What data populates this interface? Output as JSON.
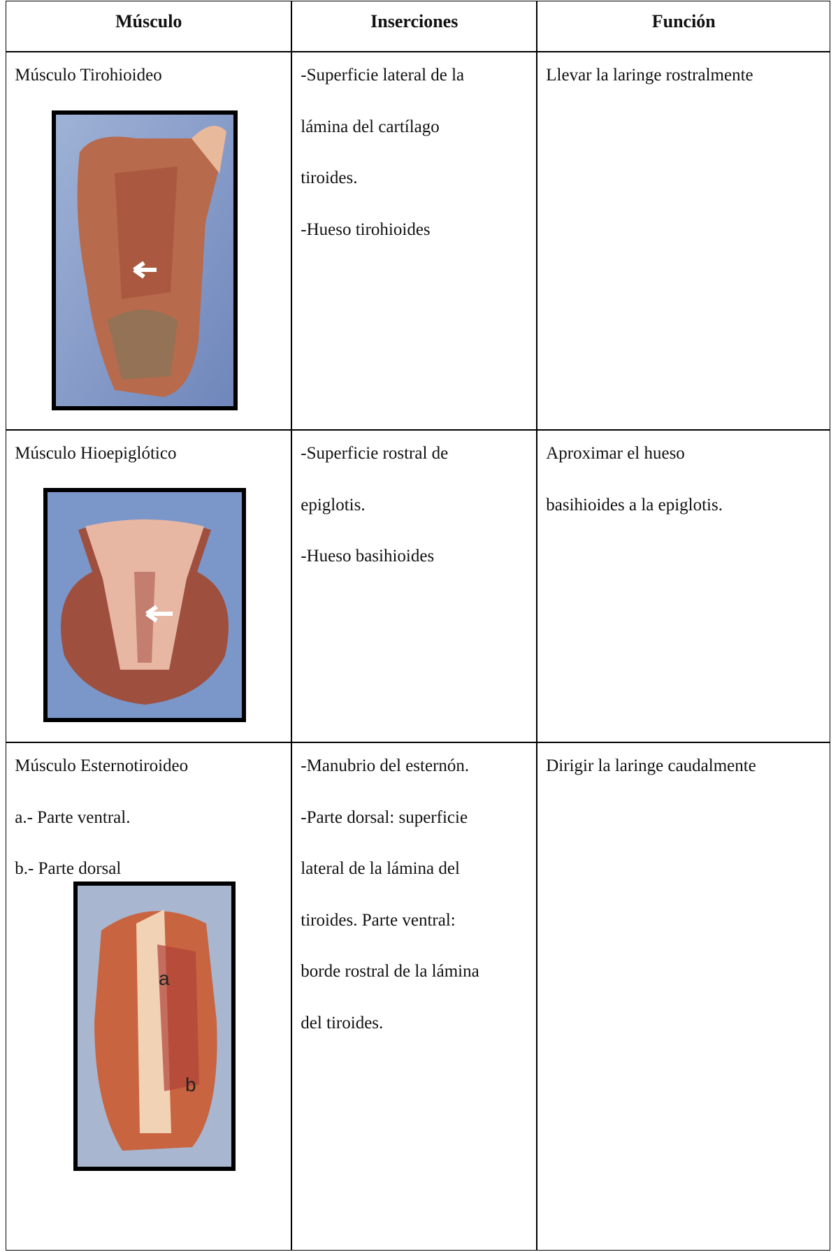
{
  "table": {
    "headers": [
      "Músculo",
      "Inserciones",
      "Función"
    ],
    "rows": [
      {
        "muscle": [
          "Músculo Tirohioideo"
        ],
        "insertions": [
          "-Superficie lateral de la",
          "lámina del cartílago",
          "tiroides.",
          "-Hueso tirohioides"
        ],
        "function": [
          "Llevar la laringe rostralmente"
        ]
      },
      {
        "muscle": [
          "Músculo Hioepiglótico"
        ],
        "insertions": [
          "-Superficie rostral de",
          "epiglotis.",
          "-Hueso basihioides"
        ],
        "function": [
          "Aproximar el hueso",
          "basihioides a la epiglotis."
        ]
      },
      {
        "muscle": [
          "Músculo Esternotiroideo",
          "a.- Parte ventral.",
          "b.- Parte dorsal"
        ],
        "insertions": [
          "-Manubrio del esternón.",
          "-Parte dorsal: superficie",
          "lateral de la lámina del",
          "tiroides. Parte ventral:",
          "borde rostral de la lámina",
          "del tiroides."
        ],
        "function": [
          "Dirigir la laringe caudalmente"
        ],
        "image_labels": [
          "a",
          "b"
        ]
      }
    ]
  }
}
